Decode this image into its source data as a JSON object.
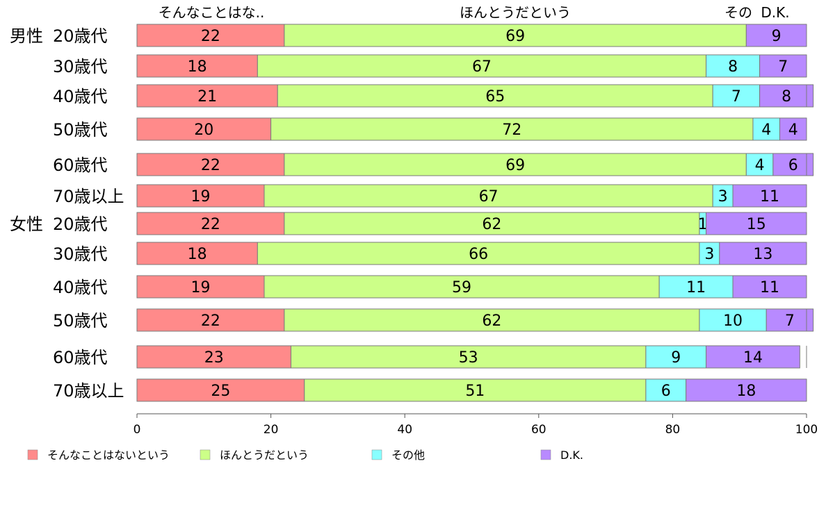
{
  "chart_data": {
    "type": "bar",
    "orientation": "horizontal",
    "stacked": true,
    "xlim": [
      0,
      100
    ],
    "x_ticks": [
      "0",
      "20",
      "40",
      "60",
      "80",
      "100"
    ],
    "column_headers": [
      "そんなことはな..",
      "ほんとうだという",
      "その",
      "D.K."
    ],
    "groups": [
      {
        "label": "男性",
        "first_row": 0
      },
      {
        "label": "女性",
        "first_row": 6
      }
    ],
    "rows": [
      {
        "label": "20歳代",
        "values": [
          22,
          69,
          0,
          9
        ]
      },
      {
        "label": "30歳代",
        "values": [
          18,
          67,
          8,
          7
        ]
      },
      {
        "label": "40歳代",
        "values": [
          21,
          65,
          7,
          8
        ]
      },
      {
        "label": "50歳代",
        "values": [
          20,
          72,
          4,
          4
        ]
      },
      {
        "label": "60歳代",
        "values": [
          22,
          69,
          4,
          6
        ]
      },
      {
        "label": "70歳以上",
        "values": [
          19,
          67,
          3,
          11
        ]
      },
      {
        "label": "20歳代",
        "values": [
          22,
          62,
          1,
          15
        ]
      },
      {
        "label": "30歳代",
        "values": [
          18,
          66,
          3,
          13
        ]
      },
      {
        "label": "40歳代",
        "values": [
          19,
          59,
          11,
          11
        ]
      },
      {
        "label": "50歳代",
        "values": [
          22,
          62,
          10,
          7
        ]
      },
      {
        "label": "60歳代",
        "values": [
          23,
          53,
          9,
          14
        ]
      },
      {
        "label": "70歳以上",
        "values": [
          25,
          51,
          6,
          18
        ]
      }
    ],
    "series": [
      {
        "name": "そんなことはないという",
        "color": "#ff8a8a"
      },
      {
        "name": "ほんとうだという",
        "color": "#ccff88"
      },
      {
        "name": "その他",
        "color": "#88ffff"
      },
      {
        "name": "D.K.",
        "color": "#b88aff"
      }
    ],
    "legend_position": "bottom",
    "grid": false
  }
}
